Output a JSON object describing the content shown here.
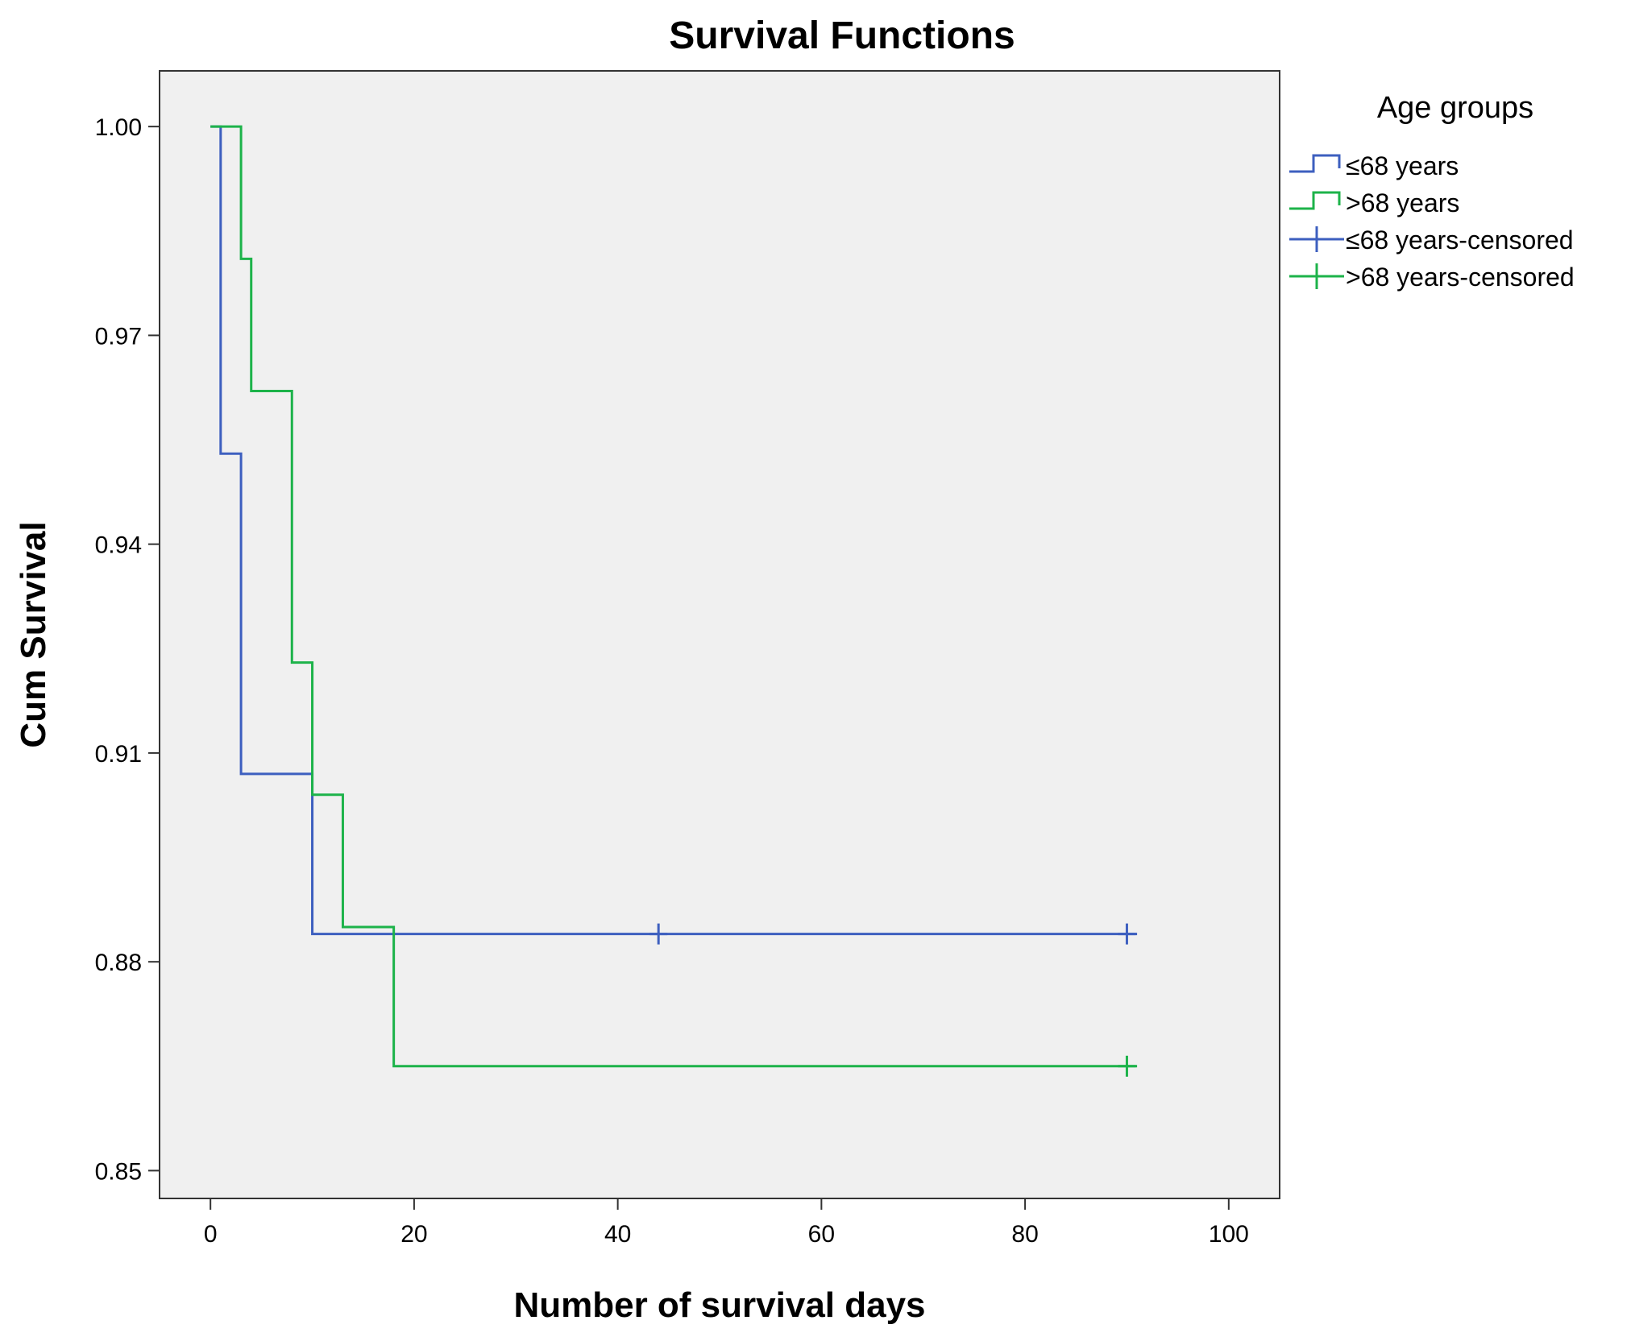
{
  "chart_data": {
    "type": "line",
    "title": "Survival Functions",
    "xlabel": "Number of survival days",
    "ylabel": "Cum Survival",
    "xlim": [
      -5,
      105
    ],
    "ylim": [
      0.846,
      1.008
    ],
    "xticks": [
      0,
      20,
      40,
      60,
      80,
      100
    ],
    "xtick_labels": [
      "0",
      "20",
      "40",
      "60",
      "80",
      "100"
    ],
    "yticks": [
      0.85,
      0.88,
      0.91,
      0.94,
      0.97,
      1.0
    ],
    "ytick_labels": [
      "0.85",
      "0.88",
      "0.91",
      "0.94",
      "0.97",
      "1.00"
    ],
    "grid": false,
    "legend_title": "Age groups",
    "legend_position": "top-right outside plot",
    "plot_background": "#f0f0f0",
    "series": [
      {
        "name": "≤68 years",
        "color": "#3d5fbf",
        "step": [
          [
            0,
            1.0
          ],
          [
            1,
            0.953
          ],
          [
            3,
            0.907
          ],
          [
            10,
            0.884
          ],
          [
            91,
            0.884
          ]
        ],
        "censored": [
          44,
          90
        ]
      },
      {
        "name": ">68 years",
        "color": "#1db34a",
        "step": [
          [
            0,
            1.0
          ],
          [
            3,
            0.981
          ],
          [
            4,
            0.962
          ],
          [
            8,
            0.923
          ],
          [
            10,
            0.904
          ],
          [
            13,
            0.885
          ],
          [
            18,
            0.865
          ],
          [
            91,
            0.865
          ]
        ],
        "censored": [
          90
        ]
      }
    ],
    "legend": [
      {
        "label": "≤68 years",
        "symbol": "step",
        "color": "#3d5fbf"
      },
      {
        "label": ">68 years",
        "symbol": "step",
        "color": "#1db34a"
      },
      {
        "label": "≤68 years-censored",
        "symbol": "cross",
        "color": "#3d5fbf"
      },
      {
        "label": ">68 years-censored",
        "symbol": "cross",
        "color": "#1db34a"
      }
    ]
  }
}
